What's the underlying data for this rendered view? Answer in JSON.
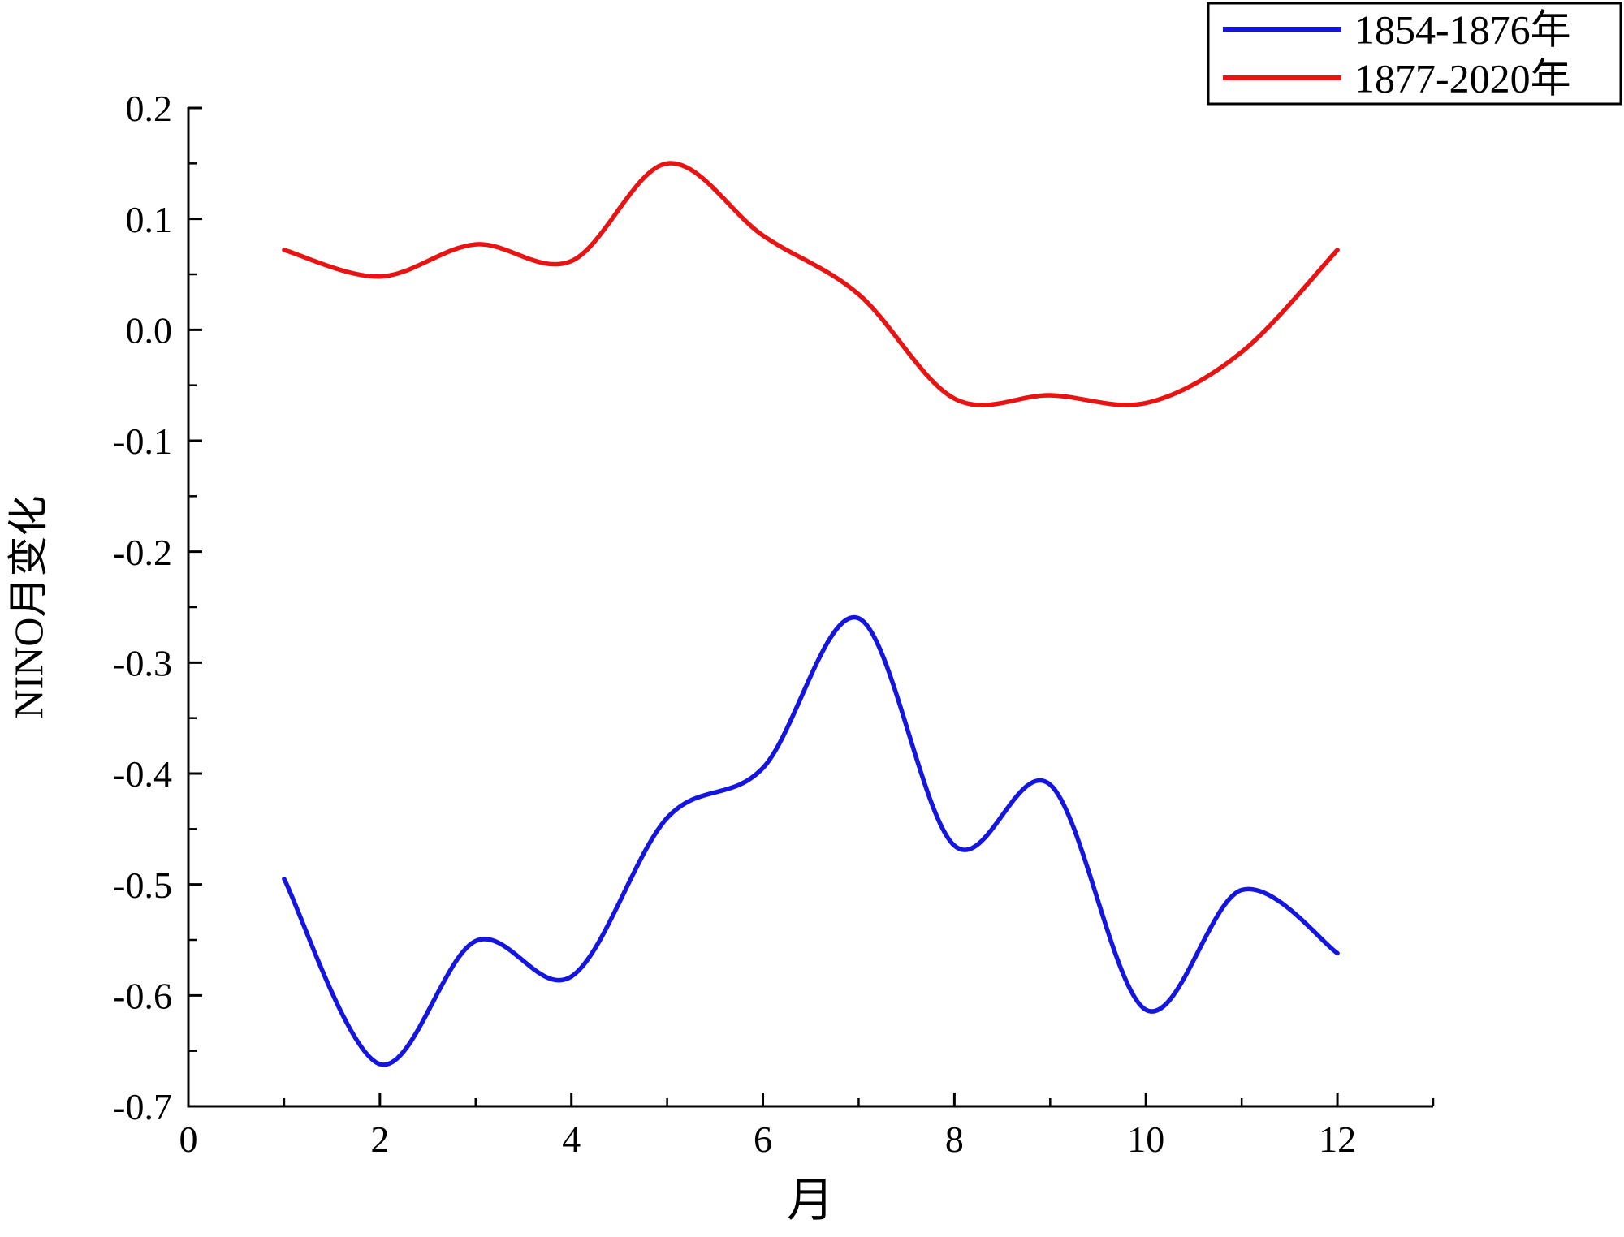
{
  "chart_data": {
    "type": "line",
    "x": [
      1,
      2,
      3,
      4,
      5,
      6,
      7,
      8,
      9,
      10,
      11,
      12
    ],
    "series": [
      {
        "name": "1854-1876年",
        "color": "#1515e0",
        "values": [
          -0.495,
          -0.662,
          -0.551,
          -0.583,
          -0.44,
          -0.395,
          -0.26,
          -0.465,
          -0.41,
          -0.613,
          -0.505,
          -0.562
        ]
      },
      {
        "name": "1877-2020年",
        "color": "#e81414",
        "values": [
          0.072,
          0.048,
          0.077,
          0.062,
          0.15,
          0.085,
          0.032,
          -0.062,
          -0.059,
          -0.066,
          -0.02,
          0.072
        ]
      }
    ],
    "title": "",
    "xlabel": "月",
    "ylabel": "NINO月变化",
    "xlim": [
      0,
      13
    ],
    "ylim": [
      -0.7,
      0.2
    ],
    "xticks": [
      0,
      2,
      4,
      6,
      8,
      10,
      12
    ],
    "x_minor_ticks": [
      1,
      3,
      5,
      7,
      9,
      11,
      13
    ],
    "yticks": [
      0.2,
      0.1,
      0.0,
      -0.1,
      -0.2,
      -0.3,
      -0.4,
      -0.5,
      -0.6,
      -0.7
    ],
    "y_minor_step": 0.05,
    "grid": false,
    "legend_position": "top-right",
    "axis_color": "#000000"
  }
}
